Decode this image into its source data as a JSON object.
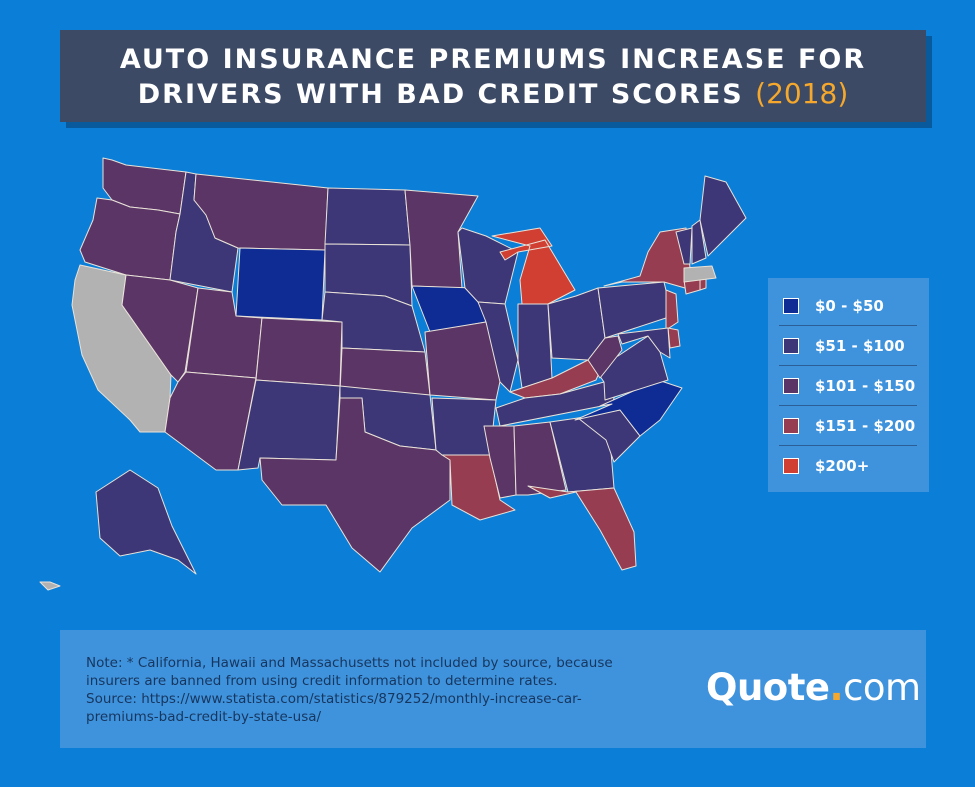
{
  "header": {
    "title_line1": "AUTO INSURANCE PREMIUMS INCREASE FOR",
    "title_line2": "DRIVERS WITH BAD CREDIT SCORES",
    "year": "(2018)"
  },
  "colors": {
    "background": "#0b7fd8",
    "title_box": "#3c4a66",
    "year_accent": "#f5a82b",
    "bin_0_50": "#0f2c95",
    "bin_51_100": "#3d3777",
    "bin_101_150": "#5b3566",
    "bin_151_200": "#973d52",
    "bin_200_plus": "#d03f32",
    "not_included": "#b2b2b2"
  },
  "legend": {
    "items": [
      {
        "label": "$0 - $50",
        "color": "#0f2c95"
      },
      {
        "label": "$51 - $100",
        "color": "#3d3777"
      },
      {
        "label": "$101 - $150",
        "color": "#5b3566"
      },
      {
        "label": "$151 - $200",
        "color": "#973d52"
      },
      {
        "label": "$200+",
        "color": "#d03f32"
      }
    ]
  },
  "map": {
    "states": [
      {
        "code": "WA",
        "bin": "101-150"
      },
      {
        "code": "OR",
        "bin": "101-150"
      },
      {
        "code": "CA",
        "bin": "not-included"
      },
      {
        "code": "ID",
        "bin": "51-100"
      },
      {
        "code": "NV",
        "bin": "101-150"
      },
      {
        "code": "MT",
        "bin": "101-150"
      },
      {
        "code": "WY",
        "bin": "0-50"
      },
      {
        "code": "UT",
        "bin": "101-150"
      },
      {
        "code": "AZ",
        "bin": "101-150"
      },
      {
        "code": "CO",
        "bin": "101-150"
      },
      {
        "code": "NM",
        "bin": "51-100"
      },
      {
        "code": "ND",
        "bin": "51-100"
      },
      {
        "code": "SD",
        "bin": "51-100"
      },
      {
        "code": "NE",
        "bin": "51-100"
      },
      {
        "code": "KS",
        "bin": "101-150"
      },
      {
        "code": "OK",
        "bin": "51-100"
      },
      {
        "code": "TX",
        "bin": "101-150"
      },
      {
        "code": "MN",
        "bin": "101-150"
      },
      {
        "code": "IA",
        "bin": "0-50"
      },
      {
        "code": "MO",
        "bin": "101-150"
      },
      {
        "code": "AR",
        "bin": "51-100"
      },
      {
        "code": "LA",
        "bin": "151-200"
      },
      {
        "code": "WI",
        "bin": "51-100"
      },
      {
        "code": "IL",
        "bin": "51-100"
      },
      {
        "code": "MI",
        "bin": "200+"
      },
      {
        "code": "IN",
        "bin": "51-100"
      },
      {
        "code": "OH",
        "bin": "51-100"
      },
      {
        "code": "KY",
        "bin": "151-200"
      },
      {
        "code": "TN",
        "bin": "51-100"
      },
      {
        "code": "MS",
        "bin": "101-150"
      },
      {
        "code": "AL",
        "bin": "101-150"
      },
      {
        "code": "GA",
        "bin": "51-100"
      },
      {
        "code": "FL",
        "bin": "151-200"
      },
      {
        "code": "SC",
        "bin": "51-100"
      },
      {
        "code": "NC",
        "bin": "0-50"
      },
      {
        "code": "VA",
        "bin": "51-100"
      },
      {
        "code": "WV",
        "bin": "101-150"
      },
      {
        "code": "PA",
        "bin": "51-100"
      },
      {
        "code": "NY",
        "bin": "151-200"
      },
      {
        "code": "NJ",
        "bin": "151-200"
      },
      {
        "code": "DE",
        "bin": "151-200"
      },
      {
        "code": "MD",
        "bin": "51-100"
      },
      {
        "code": "VT",
        "bin": "51-100"
      },
      {
        "code": "NH",
        "bin": "51-100"
      },
      {
        "code": "ME",
        "bin": "51-100"
      },
      {
        "code": "CT",
        "bin": "151-200"
      },
      {
        "code": "RI",
        "bin": "151-200"
      },
      {
        "code": "MA",
        "bin": "not-included"
      },
      {
        "code": "AK",
        "bin": "51-100"
      },
      {
        "code": "HI",
        "bin": "not-included"
      }
    ]
  },
  "footer": {
    "note_line1": "Note: * California, Hawaii and Massachusetts not included by source, because",
    "note_line2": "insurers are banned from using credit information to determine rates.",
    "source_line1": "Source: https://www.statista.com/statistics/879252/monthly-increase-car-",
    "source_line2": "premiums-bad-credit-by-state-usa/",
    "logo_brand": "Quote",
    "logo_dot": ".",
    "logo_tld": "com"
  }
}
